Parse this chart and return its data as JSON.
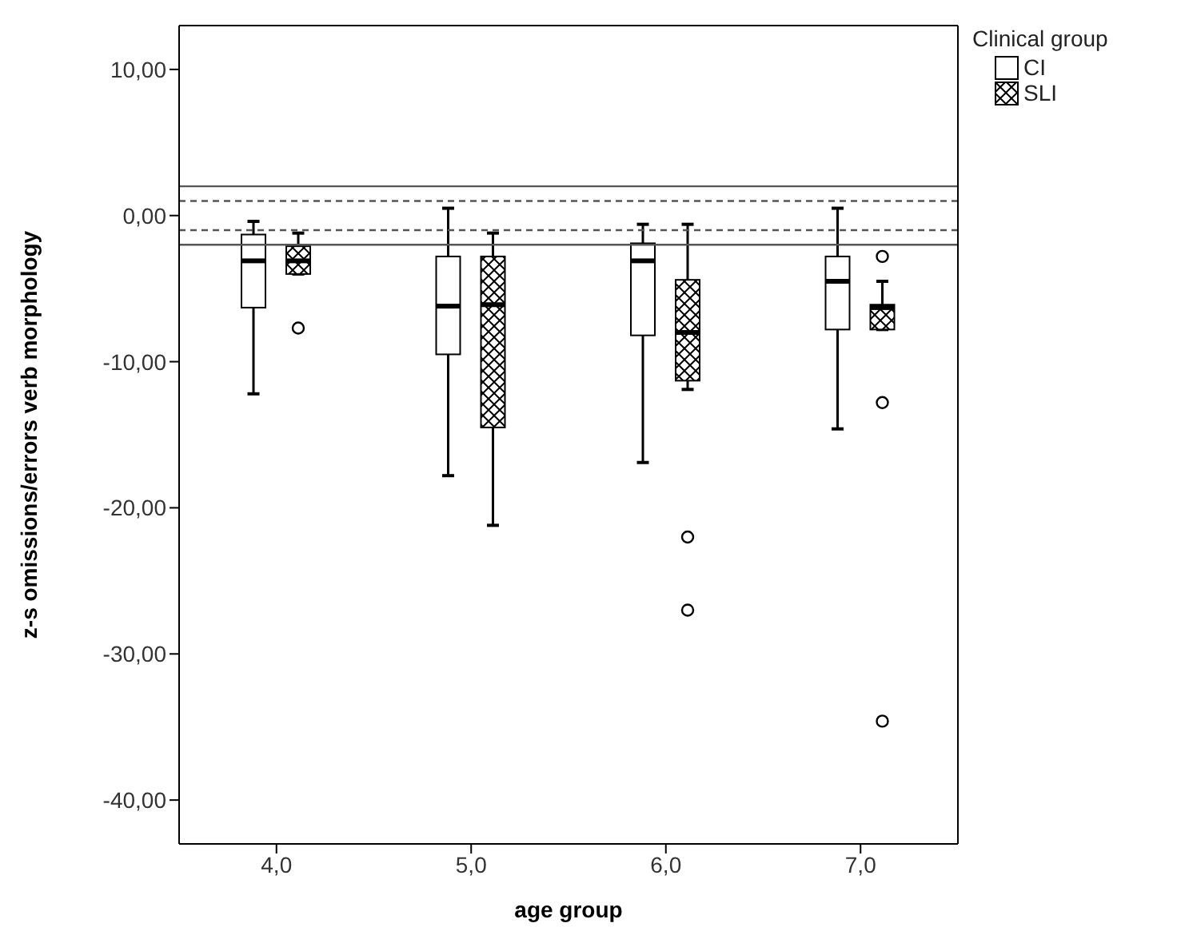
{
  "chart_data": {
    "type": "box",
    "xlabel": "age group",
    "ylabel": "z-s omissions/errors verb morphology",
    "legend_title": "Clinical group",
    "legend": "top right",
    "categories": [
      "4,0",
      "5,0",
      "6,0",
      "7,0"
    ],
    "ylim": [
      -43,
      13
    ],
    "yticks": [
      {
        "value": 10,
        "label": "10,00"
      },
      {
        "value": 0,
        "label": "0,00"
      },
      {
        "value": -10,
        "label": "-10,00"
      },
      {
        "value": -20,
        "label": "-20,00"
      },
      {
        "value": -30,
        "label": "-30,00"
      },
      {
        "value": -40,
        "label": "-40,00"
      }
    ],
    "ref_lines": [
      {
        "axis": "y",
        "value": 2,
        "line_style": "solid"
      },
      {
        "axis": "y",
        "value": 1,
        "line_style": "dashed"
      },
      {
        "axis": "y",
        "value": -1,
        "line_style": "dashed"
      },
      {
        "axis": "y",
        "value": -2,
        "line_style": "solid"
      }
    ],
    "series": [
      {
        "name": "CI",
        "color": "#ffffff",
        "boxes": [
          {
            "low": -12.2,
            "q1": -6.3,
            "median": -3.1,
            "q3": -1.3,
            "high": -0.4
          },
          {
            "low": -17.8,
            "q1": -9.5,
            "median": -6.2,
            "q3": -2.8,
            "high": 0.5
          },
          {
            "low": -16.9,
            "q1": -8.2,
            "median": -3.1,
            "q3": -1.9,
            "high": -0.6
          },
          {
            "low": -14.6,
            "q1": -7.8,
            "median": -4.5,
            "q3": -2.8,
            "high": 0.5
          }
        ]
      },
      {
        "name": "SLI",
        "color": "#000000",
        "boxes": [
          {
            "low": -4.0,
            "q1": -4.0,
            "median": -3.1,
            "q3": -2.1,
            "high": -1.2,
            "outliers": [
              -7.7
            ]
          },
          {
            "low": -21.2,
            "q1": -14.5,
            "median": -6.1,
            "q3": -2.8,
            "high": -1.2
          },
          {
            "low": -11.9,
            "q1": -11.3,
            "median": -8.0,
            "q3": -4.4,
            "high": -0.6,
            "outliers": [
              -22.0,
              -27.0
            ]
          },
          {
            "low": -7.8,
            "q1": -7.8,
            "median": -6.3,
            "q3": -6.1,
            "high": -4.5,
            "outliers": [
              -2.8,
              -12.8,
              -34.6
            ]
          }
        ]
      }
    ]
  }
}
